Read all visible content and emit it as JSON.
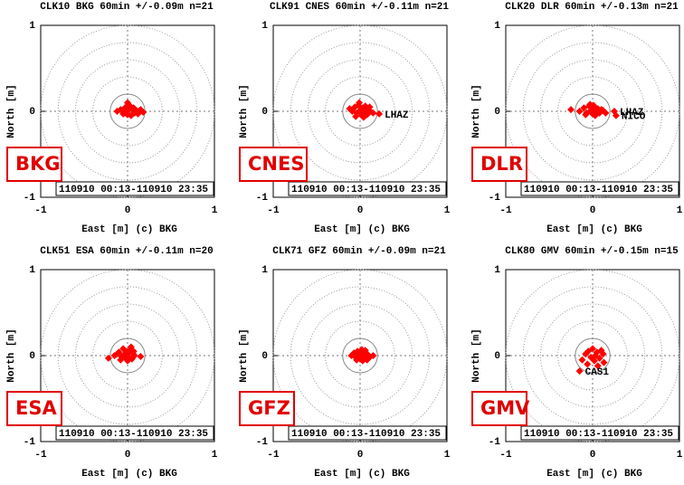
{
  "chart_data": [
    {
      "type": "scatter",
      "title": "CLK10 BKG 60min +/-0.09m n=21",
      "xlabel": "East [m] (c) BKG",
      "ylabel": "North [m]",
      "badge": "BKG",
      "period": "110910 00:13-110910 23:35",
      "color": "#ff0000",
      "xlim": [
        -1,
        1
      ],
      "ylim": [
        -1,
        1
      ],
      "xticks": [
        -1,
        0,
        1
      ],
      "yticks": [
        -1,
        0,
        1
      ],
      "x": [
        -0.12,
        -0.08,
        -0.05,
        -0.02,
        0.0,
        0.02,
        0.04,
        0.06,
        0.08,
        0.1,
        0.15,
        0.18,
        -0.03,
        0.01,
        0.03,
        0.05,
        -0.06,
        0.0,
        0.07,
        0.12,
        -0.01
      ],
      "y": [
        0.0,
        0.02,
        -0.03,
        0.05,
        0.1,
        0.02,
        -0.05,
        0.03,
        -0.02,
        0.01,
        0.02,
        -0.01,
        -0.02,
        0.03,
        0.06,
        -0.04,
        0.01,
        -0.04,
        0.04,
        -0.03,
        0.0
      ],
      "labels": [
        null,
        null,
        null,
        null,
        null,
        null,
        null,
        null,
        null,
        null,
        null,
        null,
        null,
        null,
        null,
        null,
        null,
        null,
        null,
        null,
        null
      ]
    },
    {
      "type": "scatter",
      "title": "CLK91 CNES 60min +/-0.11m n=21",
      "xlabel": "East [m] (c) BKG",
      "ylabel": "North [m]",
      "badge": "CNES",
      "period": "110910 00:13-110910 23:35",
      "color": "#ff0000",
      "xlim": [
        -1,
        1
      ],
      "ylim": [
        -1,
        1
      ],
      "xticks": [
        -1,
        0,
        1
      ],
      "yticks": [
        -1,
        0,
        1
      ],
      "x": [
        -0.12,
        -0.09,
        -0.06,
        -0.04,
        -0.02,
        0.0,
        0.02,
        0.03,
        0.05,
        0.07,
        0.09,
        0.11,
        -0.05,
        -0.01,
        0.01,
        0.04,
        0.06,
        0.08,
        0.12,
        0.15,
        0.22
      ],
      "y": [
        0.03,
        0.0,
        0.05,
        -0.02,
        0.07,
        0.01,
        -0.05,
        0.04,
        0.0,
        -0.03,
        0.02,
        0.05,
        -0.06,
        0.1,
        -0.02,
        -0.07,
        0.06,
        -0.04,
        0.0,
        -0.02,
        -0.03
      ],
      "labels": [
        null,
        null,
        null,
        null,
        null,
        null,
        null,
        null,
        null,
        null,
        null,
        null,
        null,
        null,
        null,
        null,
        null,
        null,
        null,
        null,
        "LHAZ"
      ]
    },
    {
      "type": "scatter",
      "title": "CLK20 DLR 60min +/-0.13m n=21",
      "xlabel": "East [m] (c) BKG",
      "ylabel": "North [m]",
      "badge": "DLR",
      "period": "110910 00:13-110910 23:35",
      "color": "#ff0000",
      "xlim": [
        -1,
        1
      ],
      "ylim": [
        -1,
        1
      ],
      "xticks": [
        -1,
        0,
        1
      ],
      "yticks": [
        -1,
        0,
        1
      ],
      "x": [
        -0.25,
        -0.15,
        -0.1,
        -0.07,
        -0.04,
        -0.02,
        0.0,
        0.02,
        0.04,
        0.06,
        0.08,
        0.1,
        -0.08,
        -0.03,
        0.01,
        0.03,
        0.05,
        0.12,
        0.15,
        0.25,
        0.27
      ],
      "y": [
        0.02,
        0.0,
        0.04,
        -0.02,
        0.06,
        0.01,
        -0.03,
        0.05,
        0.0,
        0.03,
        -0.02,
        0.02,
        -0.04,
        0.08,
        0.07,
        -0.05,
        -0.01,
        0.01,
        -0.02,
        0.0,
        -0.05
      ],
      "labels": [
        null,
        null,
        null,
        null,
        null,
        null,
        null,
        null,
        null,
        null,
        null,
        null,
        null,
        null,
        null,
        null,
        null,
        null,
        null,
        "LHAZ",
        "NICO"
      ]
    },
    {
      "type": "scatter",
      "title": "CLK51 ESA 60min +/-0.11m n=20",
      "xlabel": "East [m] (c) BKG",
      "ylabel": "North [m]",
      "badge": "ESA",
      "period": "110910 00:13-110910 23:35",
      "color": "#ff0000",
      "xlim": [
        -1,
        1
      ],
      "ylim": [
        -1,
        1
      ],
      "xticks": [
        -1,
        0,
        1
      ],
      "yticks": [
        -1,
        0,
        1
      ],
      "x": [
        -0.22,
        -0.15,
        -0.1,
        -0.07,
        -0.05,
        -0.03,
        0.0,
        0.02,
        0.04,
        0.06,
        0.08,
        0.15,
        -0.08,
        -0.02,
        0.01,
        0.03,
        0.05,
        -0.12,
        0.0,
        0.07
      ],
      "y": [
        -0.03,
        0.0,
        0.04,
        -0.01,
        0.08,
        0.02,
        0.05,
        -0.02,
        0.1,
        0.03,
        0.0,
        -0.01,
        -0.05,
        -0.03,
        0.03,
        0.06,
        -0.04,
        0.02,
        -0.06,
        0.05
      ],
      "labels": [
        null,
        null,
        null,
        null,
        null,
        null,
        null,
        null,
        null,
        null,
        null,
        null,
        null,
        null,
        null,
        null,
        null,
        null,
        null,
        null
      ]
    },
    {
      "type": "scatter",
      "title": "CLK71 GFZ 60min +/-0.09m n=21",
      "xlabel": "East [m] (c) BKG",
      "ylabel": "North [m]",
      "badge": "GFZ",
      "period": "110910 00:13-110910 23:35",
      "color": "#ff0000",
      "xlim": [
        -1,
        1
      ],
      "ylim": [
        -1,
        1
      ],
      "xticks": [
        -1,
        0,
        1
      ],
      "yticks": [
        -1,
        0,
        1
      ],
      "x": [
        -0.1,
        -0.07,
        -0.05,
        -0.03,
        -0.01,
        0.0,
        0.02,
        0.03,
        0.05,
        0.07,
        0.09,
        0.15,
        -0.04,
        -0.02,
        0.01,
        0.04,
        0.06,
        0.08,
        0.11,
        0.0,
        0.03
      ],
      "y": [
        0.0,
        0.03,
        -0.02,
        0.05,
        0.02,
        -0.04,
        0.07,
        0.0,
        0.04,
        -0.02,
        0.01,
        0.0,
        -0.05,
        -0.01,
        0.03,
        -0.03,
        0.06,
        -0.05,
        -0.02,
        0.01,
        -0.06
      ],
      "labels": [
        null,
        null,
        null,
        null,
        null,
        null,
        null,
        null,
        null,
        null,
        null,
        null,
        null,
        null,
        null,
        null,
        null,
        null,
        null,
        null,
        null
      ]
    },
    {
      "type": "scatter",
      "title": "CLK80 GMV 60min +/-0.15m n=15",
      "xlabel": "East [m] (c) BKG",
      "ylabel": "North [m]",
      "badge": "GMV",
      "period": "110910 00:13-110910 23:35",
      "color": "#ff0000",
      "xlim": [
        -1,
        1
      ],
      "ylim": [
        -1,
        1
      ],
      "xticks": [
        -1,
        0,
        1
      ],
      "yticks": [
        -1,
        0,
        1
      ],
      "x": [
        -0.12,
        -0.08,
        -0.05,
        -0.02,
        0.0,
        0.03,
        0.05,
        0.08,
        0.1,
        0.13,
        -0.06,
        0.02,
        0.06,
        0.12,
        -0.15
      ],
      "y": [
        -0.05,
        0.02,
        0.05,
        -0.02,
        0.08,
        0.0,
        0.04,
        -0.03,
        0.06,
        -0.08,
        -0.1,
        -0.06,
        -0.12,
        0.02,
        -0.18
      ],
      "labels": [
        null,
        null,
        null,
        null,
        null,
        null,
        null,
        null,
        null,
        null,
        null,
        null,
        null,
        null,
        "CAS1"
      ]
    }
  ]
}
